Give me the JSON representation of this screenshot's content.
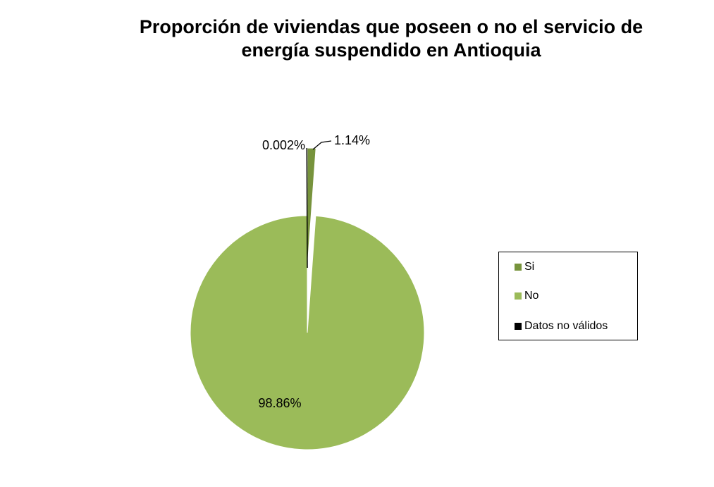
{
  "chart_data": {
    "type": "pie",
    "title": "Proporción de viviendas que poseen o no el servicio de energía suspendido en Antioquia",
    "title_lines": [
      "Proporción de viviendas que poseen o no el servicio de",
      "energía suspendido en Antioquia"
    ],
    "slices": [
      {
        "name": "Si",
        "value": 1.14,
        "label": "1.14%",
        "color": "#77933C"
      },
      {
        "name": "No",
        "value": 98.86,
        "label": "98.86%",
        "color": "#9BBB59"
      },
      {
        "name": "Datos no válidos",
        "value": 0.002,
        "label": "0.002%",
        "color": "#000000"
      }
    ],
    "legend_position": "right"
  }
}
